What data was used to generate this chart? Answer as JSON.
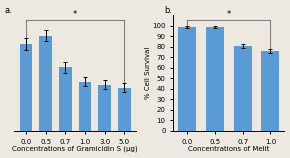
{
  "left_chart": {
    "label": "a.",
    "x_labels": [
      "0.0",
      "0.5",
      "0.7",
      "1.0",
      "3.0",
      "5.0"
    ],
    "values": [
      105,
      108,
      97,
      92,
      91,
      90
    ],
    "errors": [
      2,
      2,
      2,
      1.5,
      1.5,
      1.5
    ],
    "bar_color": "#5B9BD5",
    "xlabel": "Concentrations of Gramicidin S (μg)",
    "ylabel": "",
    "ylim": [
      75,
      115
    ],
    "yticks": [],
    "significance_bracket": [
      0,
      5
    ],
    "sig_label": "*"
  },
  "right_chart": {
    "label": "b.",
    "x_labels": [
      "0.0",
      "0.5",
      "0.7",
      "1.0"
    ],
    "values": [
      99,
      99,
      81,
      76
    ],
    "errors": [
      1,
      1,
      2,
      2
    ],
    "bar_color": "#5B9BD5",
    "xlabel": "Concentrations of Melit",
    "ylabel": "% Cell Survival",
    "ylim": [
      0,
      110
    ],
    "yticks": [
      0,
      10,
      20,
      30,
      40,
      50,
      60,
      70,
      80,
      90,
      100
    ],
    "significance_bracket": [
      0,
      3
    ],
    "sig_label": "*"
  },
  "background_color": "#ede8e0",
  "font_size": 5.0,
  "label_font_size": 6.0
}
